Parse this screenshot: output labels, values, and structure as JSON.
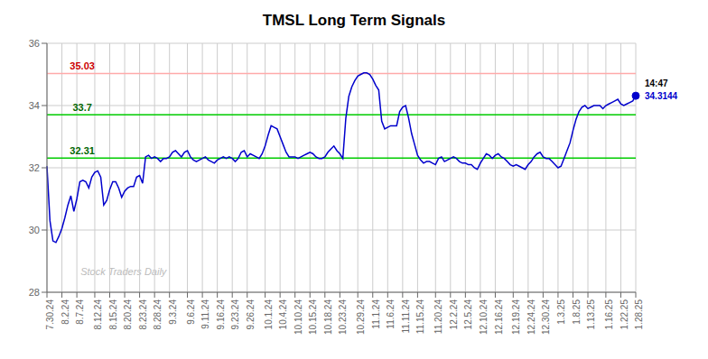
{
  "chart_data": {
    "type": "line",
    "title": "TMSL Long Term Signals",
    "categories": [
      "7.30.24",
      null,
      null,
      null,
      null,
      "8.2.24",
      null,
      null,
      null,
      null,
      "8.7.24",
      null,
      null,
      null,
      null,
      null,
      "8.12.24",
      null,
      null,
      null,
      null,
      "8.15.24",
      null,
      null,
      null,
      null,
      "8.20.24",
      null,
      null,
      null,
      null,
      "8.23.24",
      null,
      null,
      null,
      null,
      "8.28.24",
      null,
      null,
      null,
      null,
      "9.3.24",
      null,
      null,
      null,
      null,
      null,
      "9.6.24",
      null,
      null,
      null,
      null,
      "9.11.24",
      null,
      null,
      null,
      null,
      "9.16.24",
      null,
      null,
      null,
      null,
      "9.23.24",
      null,
      null,
      null,
      null,
      "9.26.24",
      null,
      null,
      null,
      null,
      null,
      "10.1.24",
      null,
      null,
      null,
      null,
      "10.4.24",
      null,
      null,
      null,
      null,
      "10.10.24",
      null,
      null,
      null,
      null,
      "10.15.24",
      null,
      null,
      null,
      null,
      "10.18.24",
      null,
      null,
      null,
      null,
      "10.23.24",
      null,
      null,
      null,
      null,
      null,
      "10.29.24",
      null,
      null,
      null,
      null,
      "11.1.24",
      null,
      null,
      null,
      null,
      "11.6.24",
      null,
      null,
      null,
      null,
      "11.11.24",
      null,
      null,
      null,
      null,
      "11.15.24",
      null,
      null,
      null,
      null,
      null,
      "11.20.24",
      null,
      null,
      null,
      null,
      "12.2.24",
      null,
      null,
      null,
      null,
      "12.5.24",
      null,
      null,
      null,
      null,
      "12.10.24",
      null,
      null,
      null,
      null,
      "12.16.24",
      null,
      null,
      null,
      null,
      null,
      "12.19.24",
      null,
      null,
      null,
      null,
      "12.24.24",
      null,
      null,
      null,
      null,
      "12.30.24",
      null,
      null,
      null,
      null,
      "1.3.25",
      null,
      null,
      null,
      null,
      "1.8.25",
      null,
      null,
      null,
      null,
      "1.13.25",
      null,
      null,
      null,
      null,
      null,
      "1.16.25",
      null,
      null,
      null,
      null,
      "1.22.25",
      null,
      null,
      null,
      null,
      "1.28.25"
    ],
    "values": [
      32.05,
      30.3,
      29.65,
      29.6,
      29.8,
      30.05,
      30.4,
      30.8,
      31.1,
      30.6,
      31.0,
      31.55,
      31.6,
      31.55,
      31.35,
      31.7,
      31.85,
      31.9,
      31.7,
      30.8,
      30.95,
      31.3,
      31.55,
      31.55,
      31.35,
      31.05,
      31.25,
      31.35,
      31.4,
      31.4,
      31.7,
      31.75,
      31.5,
      32.35,
      32.4,
      32.3,
      32.35,
      32.3,
      32.2,
      32.3,
      32.3,
      32.35,
      32.5,
      32.55,
      32.45,
      32.35,
      32.5,
      32.55,
      32.35,
      32.25,
      32.2,
      32.25,
      32.3,
      32.35,
      32.25,
      32.2,
      32.15,
      32.25,
      32.3,
      32.35,
      32.3,
      32.35,
      32.3,
      32.2,
      32.3,
      32.5,
      32.55,
      32.35,
      32.45,
      32.4,
      32.35,
      32.3,
      32.45,
      32.7,
      33.05,
      33.35,
      33.3,
      33.25,
      33.0,
      32.75,
      32.5,
      32.35,
      32.35,
      32.35,
      32.3,
      32.35,
      32.4,
      32.45,
      32.5,
      32.45,
      32.35,
      32.3,
      32.3,
      32.35,
      32.5,
      32.6,
      32.7,
      32.55,
      32.45,
      32.3,
      33.6,
      34.3,
      34.6,
      34.8,
      34.95,
      35.0,
      35.05,
      35.05,
      35.0,
      34.85,
      34.65,
      34.5,
      33.5,
      33.25,
      33.3,
      33.35,
      33.35,
      33.35,
      33.8,
      33.95,
      34.0,
      33.6,
      33.1,
      32.75,
      32.4,
      32.25,
      32.15,
      32.2,
      32.2,
      32.15,
      32.1,
      32.3,
      32.35,
      32.2,
      32.25,
      32.3,
      32.35,
      32.3,
      32.2,
      32.15,
      32.15,
      32.1,
      32.1,
      32.0,
      31.95,
      32.15,
      32.3,
      32.45,
      32.4,
      32.3,
      32.4,
      32.45,
      32.35,
      32.3,
      32.2,
      32.1,
      32.05,
      32.1,
      32.05,
      32.0,
      31.95,
      32.1,
      32.2,
      32.35,
      32.45,
      32.5,
      32.35,
      32.3,
      32.3,
      32.2,
      32.1,
      32.0,
      32.05,
      32.3,
      32.55,
      32.8,
      33.2,
      33.55,
      33.8,
      33.95,
      34.0,
      33.9,
      33.95,
      34.0,
      34.0,
      34.0,
      33.9,
      34.0,
      34.05,
      34.1,
      34.15,
      34.2,
      34.05,
      34.0,
      34.05,
      34.1,
      34.15,
      34.3144
    ],
    "color": "#0000cc",
    "ylim": [
      28,
      36
    ],
    "yticks": [
      28,
      30,
      32,
      34,
      36
    ],
    "grid": true,
    "reference_lines": [
      {
        "y": 35.03,
        "color": "#ffaaaa",
        "label": "35.03",
        "label_color": "#cc0000"
      },
      {
        "y": 33.7,
        "color": "#00cc00",
        "label": "33.7",
        "label_color": "#006600"
      },
      {
        "y": 32.31,
        "color": "#00cc00",
        "label": "32.31",
        "label_color": "#006600"
      }
    ],
    "current_point": {
      "time": "14:47",
      "time_color": "#000000",
      "value": 34.3144,
      "label": "34.3144",
      "color": "#0000cc"
    },
    "watermark": {
      "text": "Stock Traders Daily",
      "color": "#bbbbbb"
    }
  }
}
